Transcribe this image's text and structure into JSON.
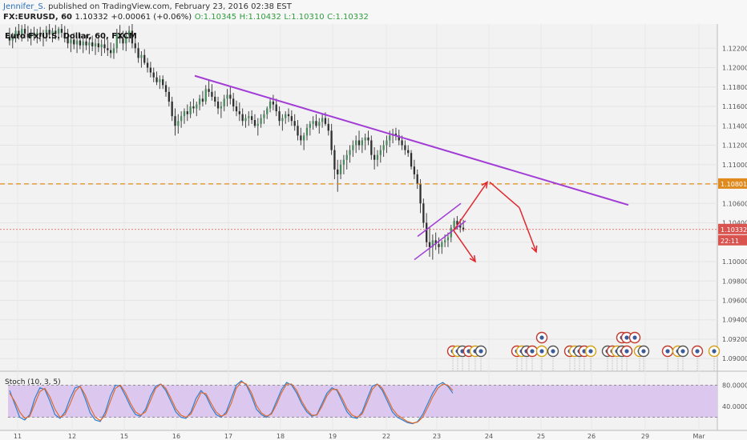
{
  "header": {
    "author": "Jennifer_S.",
    "published": "published on TradingView.com, February 23, 2016 02:38 EST",
    "symbol": "FX:EURUSD, 60",
    "last": "1.10332",
    "change": "+0.00061 (+0.06%)",
    "open": "O:1.10345",
    "high": "H:1.10432",
    "low": "L:1.10310",
    "close": "C:1.10332"
  },
  "chart_data": {
    "type": "candlestick",
    "title": "Euro Fx/U.S. Dollar, 60, FXCM",
    "x_tick_labels": [
      "11",
      "12",
      "15",
      "16",
      "17",
      "18",
      "19",
      "22",
      "23",
      "24",
      "25",
      "26",
      "29",
      "Mar"
    ],
    "y_tick_labels": [
      "1.12200",
      "1.12000",
      "1.11800",
      "1.11600",
      "1.11400",
      "1.11200",
      "1.11000",
      "1.10800",
      "1.10600",
      "1.10400",
      "1.10200",
      "1.10000",
      "1.09800",
      "1.09600",
      "1.09400",
      "1.09200",
      "1.09000"
    ],
    "ylim": [
      1.0887,
      1.1245
    ],
    "current_price_label": "1.10332",
    "countdown_label": "22:11",
    "resistance_label": "1.10801",
    "resistance_level": 1.10801,
    "current_price": 1.10332,
    "candles": [
      [
        1.1232,
        1.1241,
        1.1223,
        1.1228
      ],
      [
        1.1228,
        1.1236,
        1.122,
        1.1233
      ],
      [
        1.1233,
        1.1242,
        1.1226,
        1.1238
      ],
      [
        1.1238,
        1.1246,
        1.1229,
        1.1234
      ],
      [
        1.1234,
        1.1244,
        1.1227,
        1.124
      ],
      [
        1.124,
        1.1246,
        1.123,
        1.1235
      ],
      [
        1.1235,
        1.1243,
        1.1227,
        1.1231
      ],
      [
        1.1231,
        1.124,
        1.1223,
        1.1236
      ],
      [
        1.1236,
        1.1242,
        1.1228,
        1.1233
      ],
      [
        1.1233,
        1.124,
        1.1225,
        1.1236
      ],
      [
        1.1236,
        1.1242,
        1.1227,
        1.1232
      ],
      [
        1.1232,
        1.1239,
        1.1222,
        1.1235
      ],
      [
        1.1235,
        1.1243,
        1.1227,
        1.1239
      ],
      [
        1.1239,
        1.1245,
        1.123,
        1.1234
      ],
      [
        1.1234,
        1.1241,
        1.1226,
        1.1238
      ],
      [
        1.1238,
        1.1244,
        1.1229,
        1.1235
      ],
      [
        1.1235,
        1.1242,
        1.1228,
        1.124
      ],
      [
        1.124,
        1.1246,
        1.1231,
        1.1236
      ],
      [
        1.1236,
        1.1243,
        1.1226,
        1.1232
      ],
      [
        1.1232,
        1.124,
        1.122,
        1.1225
      ],
      [
        1.1225,
        1.1233,
        1.1216,
        1.1229
      ],
      [
        1.1229,
        1.1236,
        1.1219,
        1.1224
      ],
      [
        1.1224,
        1.1232,
        1.1215,
        1.1228
      ],
      [
        1.1228,
        1.1235,
        1.1219,
        1.1223
      ],
      [
        1.1223,
        1.1231,
        1.1215,
        1.1227
      ],
      [
        1.1227,
        1.1234,
        1.1218,
        1.1223
      ],
      [
        1.1223,
        1.1231,
        1.1214,
        1.1226
      ],
      [
        1.1226,
        1.1233,
        1.1217,
        1.1222
      ],
      [
        1.1222,
        1.123,
        1.1213,
        1.1225
      ],
      [
        1.1225,
        1.1232,
        1.1216,
        1.1221
      ],
      [
        1.1221,
        1.1229,
        1.1212,
        1.1224
      ],
      [
        1.1224,
        1.1231,
        1.1215,
        1.122
      ],
      [
        1.122,
        1.1229,
        1.1212,
        1.1218
      ],
      [
        1.1218,
        1.1226,
        1.121,
        1.1215
      ],
      [
        1.1215,
        1.1225,
        1.1209,
        1.122
      ],
      [
        1.122,
        1.124,
        1.1215,
        1.1235
      ],
      [
        1.1235,
        1.1244,
        1.1225,
        1.123
      ],
      [
        1.123,
        1.1238,
        1.1218,
        1.1225
      ],
      [
        1.1225,
        1.1238,
        1.1217,
        1.1233
      ],
      [
        1.1233,
        1.1243,
        1.1226,
        1.1238
      ],
      [
        1.1238,
        1.1245,
        1.122,
        1.1225
      ],
      [
        1.1225,
        1.1234,
        1.1215,
        1.122
      ],
      [
        1.122,
        1.1226,
        1.1205,
        1.121
      ],
      [
        1.121,
        1.1217,
        1.12,
        1.1213
      ],
      [
        1.1213,
        1.1219,
        1.1203,
        1.1205
      ],
      [
        1.1205,
        1.121,
        1.1195,
        1.12
      ],
      [
        1.12,
        1.1206,
        1.119,
        1.1195
      ],
      [
        1.1195,
        1.12,
        1.1185,
        1.119
      ],
      [
        1.119,
        1.1196,
        1.1182,
        1.1185
      ],
      [
        1.1185,
        1.1192,
        1.1178,
        1.1188
      ],
      [
        1.1188,
        1.1192,
        1.1178,
        1.1182
      ],
      [
        1.1182,
        1.1186,
        1.117,
        1.1175
      ],
      [
        1.1175,
        1.118,
        1.116,
        1.1165
      ],
      [
        1.1165,
        1.117,
        1.1145,
        1.115
      ],
      [
        1.115,
        1.1158,
        1.113,
        1.114
      ],
      [
        1.114,
        1.1152,
        1.1132,
        1.1145
      ],
      [
        1.1145,
        1.1155,
        1.1138,
        1.115
      ],
      [
        1.115,
        1.1158,
        1.1142,
        1.1155
      ],
      [
        1.1155,
        1.1162,
        1.1145,
        1.1152
      ],
      [
        1.1152,
        1.1165,
        1.1148,
        1.116
      ],
      [
        1.116,
        1.1168,
        1.1153,
        1.1158
      ],
      [
        1.1158,
        1.1165,
        1.115,
        1.1162
      ],
      [
        1.1162,
        1.1172,
        1.1156,
        1.1168
      ],
      [
        1.1168,
        1.1176,
        1.116,
        1.1165
      ],
      [
        1.1165,
        1.1182,
        1.1162,
        1.1178
      ],
      [
        1.1178,
        1.1188,
        1.117,
        1.1175
      ],
      [
        1.1175,
        1.1183,
        1.1166,
        1.117
      ],
      [
        1.117,
        1.1176,
        1.116,
        1.1165
      ],
      [
        1.1165,
        1.117,
        1.1152,
        1.1158
      ],
      [
        1.1158,
        1.1165,
        1.1148,
        1.116
      ],
      [
        1.116,
        1.1172,
        1.1155,
        1.1168
      ],
      [
        1.1168,
        1.1178,
        1.116,
        1.1172
      ],
      [
        1.1172,
        1.118,
        1.1162,
        1.1168
      ],
      [
        1.1168,
        1.1174,
        1.1155,
        1.116
      ],
      [
        1.116,
        1.1166,
        1.115,
        1.1155
      ],
      [
        1.1155,
        1.1164,
        1.1145,
        1.1152
      ],
      [
        1.1152,
        1.1158,
        1.114,
        1.1145
      ],
      [
        1.1145,
        1.1152,
        1.1138,
        1.1148
      ],
      [
        1.1148,
        1.1155,
        1.114,
        1.115
      ],
      [
        1.115,
        1.1156,
        1.1142,
        1.1146
      ],
      [
        1.1146,
        1.1152,
        1.1138,
        1.114
      ],
      [
        1.114,
        1.1148,
        1.113,
        1.1142
      ],
      [
        1.1142,
        1.1152,
        1.1138,
        1.1148
      ],
      [
        1.1148,
        1.1156,
        1.1142,
        1.1152
      ],
      [
        1.1152,
        1.116,
        1.1147,
        1.1158
      ],
      [
        1.1158,
        1.1168,
        1.1154,
        1.1165
      ],
      [
        1.1165,
        1.1172,
        1.1156,
        1.1162
      ],
      [
        1.1162,
        1.1168,
        1.115,
        1.1155
      ],
      [
        1.1155,
        1.116,
        1.114,
        1.1145
      ],
      [
        1.1145,
        1.1152,
        1.1135,
        1.1148
      ],
      [
        1.1148,
        1.1155,
        1.1142,
        1.1152
      ],
      [
        1.1152,
        1.1158,
        1.1144,
        1.115
      ],
      [
        1.115,
        1.1156,
        1.114,
        1.1145
      ],
      [
        1.1145,
        1.1152,
        1.1135,
        1.114
      ],
      [
        1.114,
        1.1146,
        1.1125,
        1.113
      ],
      [
        1.113,
        1.1138,
        1.112,
        1.1125
      ],
      [
        1.1125,
        1.1133,
        1.1115,
        1.113
      ],
      [
        1.113,
        1.1142,
        1.1125,
        1.1138
      ],
      [
        1.1138,
        1.1145,
        1.113,
        1.1142
      ],
      [
        1.1142,
        1.115,
        1.1136,
        1.1145
      ],
      [
        1.1145,
        1.1152,
        1.1138,
        1.114
      ],
      [
        1.114,
        1.1148,
        1.1132,
        1.1144
      ],
      [
        1.1144,
        1.1152,
        1.1138,
        1.1148
      ],
      [
        1.1148,
        1.1154,
        1.114,
        1.1142
      ],
      [
        1.1142,
        1.1148,
        1.113,
        1.1135
      ],
      [
        1.1135,
        1.1142,
        1.111,
        1.1115
      ],
      [
        1.1115,
        1.112,
        1.1085,
        1.1095
      ],
      [
        1.1095,
        1.1105,
        1.1072,
        1.109
      ],
      [
        1.109,
        1.1105,
        1.1085,
        1.11
      ],
      [
        1.11,
        1.111,
        1.109,
        1.1105
      ],
      [
        1.1105,
        1.1115,
        1.1095,
        1.111
      ],
      [
        1.111,
        1.112,
        1.1102,
        1.1115
      ],
      [
        1.1115,
        1.1125,
        1.1108,
        1.112
      ],
      [
        1.112,
        1.113,
        1.1112,
        1.1125
      ],
      [
        1.1125,
        1.1135,
        1.1115,
        1.112
      ],
      [
        1.112,
        1.1128,
        1.1112,
        1.1125
      ],
      [
        1.1125,
        1.1132,
        1.1115,
        1.1128
      ],
      [
        1.1128,
        1.1135,
        1.112,
        1.1125
      ],
      [
        1.1125,
        1.113,
        1.1105,
        1.111
      ],
      [
        1.111,
        1.1118,
        1.1095,
        1.1105
      ],
      [
        1.1105,
        1.1115,
        1.1098,
        1.111
      ],
      [
        1.111,
        1.112,
        1.1102,
        1.1115
      ],
      [
        1.1115,
        1.1125,
        1.1108,
        1.112
      ],
      [
        1.112,
        1.113,
        1.1112,
        1.1125
      ],
      [
        1.1125,
        1.1135,
        1.1118,
        1.113
      ],
      [
        1.113,
        1.1137,
        1.1122,
        1.1132
      ],
      [
        1.1132,
        1.1138,
        1.1125,
        1.113
      ],
      [
        1.113,
        1.1136,
        1.112,
        1.1125
      ],
      [
        1.1125,
        1.113,
        1.1115,
        1.112
      ],
      [
        1.112,
        1.1125,
        1.111,
        1.1115
      ],
      [
        1.1115,
        1.112,
        1.1108,
        1.1112
      ],
      [
        1.1112,
        1.1115,
        1.1095,
        1.1098
      ],
      [
        1.1098,
        1.1105,
        1.1085,
        1.109
      ],
      [
        1.109,
        1.1095,
        1.1075,
        1.108
      ],
      [
        1.108,
        1.1085,
        1.105,
        1.106
      ],
      [
        1.106,
        1.1065,
        1.1035,
        1.104
      ],
      [
        1.104,
        1.105,
        1.1015,
        1.102
      ],
      [
        1.102,
        1.1035,
        1.1005,
        1.1015
      ],
      [
        1.1015,
        1.1028,
        1.1002,
        1.1022
      ],
      [
        1.1022,
        1.103,
        1.1012,
        1.1018
      ],
      [
        1.1018,
        1.1025,
        1.1008,
        1.1015
      ],
      [
        1.1015,
        1.1022,
        1.1008,
        1.102
      ],
      [
        1.102,
        1.1028,
        1.1015,
        1.1022
      ],
      [
        1.1022,
        1.103,
        1.1015,
        1.1025
      ],
      [
        1.1025,
        1.1038,
        1.102,
        1.1035
      ],
      [
        1.1035,
        1.1045,
        1.103,
        1.1042
      ],
      [
        1.1042,
        1.1047,
        1.1033,
        1.1038
      ],
      [
        1.1038,
        1.1044,
        1.103,
        1.1035
      ],
      [
        1.1035,
        1.1043,
        1.1031,
        1.10332
      ]
    ],
    "annotations": {
      "downtrend_line": [
        [
          1.11916,
          1.10584
        ]
      ],
      "channel_upper": [
        [
          1.1026,
          1.106
        ]
      ],
      "channel_lower": [
        [
          1.1002,
          1.1042
        ]
      ],
      "projection_up_target": 1.1082,
      "projection_down_target": 1.1,
      "projection_down2_target": 1.101
    },
    "indicator": {
      "name": "Stoch (10, 3, 5)",
      "y_tick_labels": [
        "80.0000",
        "40.0000"
      ],
      "ylim": [
        0,
        100
      ],
      "upper_band": 80,
      "lower_band": 20,
      "k": [
        70,
        45,
        20,
        15,
        25,
        55,
        75,
        72,
        50,
        25,
        18,
        30,
        55,
        75,
        78,
        55,
        28,
        15,
        12,
        30,
        60,
        80,
        78,
        60,
        40,
        25,
        22,
        35,
        60,
        78,
        82,
        70,
        50,
        30,
        20,
        18,
        30,
        55,
        70,
        60,
        40,
        25,
        20,
        30,
        55,
        80,
        88,
        80,
        60,
        35,
        25,
        20,
        28,
        50,
        72,
        85,
        80,
        65,
        45,
        30,
        22,
        25,
        45,
        65,
        75,
        70,
        50,
        30,
        20,
        18,
        30,
        55,
        78,
        82,
        70,
        50,
        30,
        20,
        15,
        10,
        8,
        12,
        25,
        45,
        65,
        80,
        85,
        78,
        65
      ],
      "d": [
        65,
        50,
        30,
        18,
        22,
        45,
        68,
        74,
        58,
        35,
        20,
        25,
        45,
        68,
        78,
        62,
        38,
        20,
        14,
        24,
        50,
        74,
        80,
        66,
        46,
        30,
        24,
        30,
        52,
        74,
        82,
        74,
        56,
        36,
        24,
        20,
        26,
        46,
        66,
        64,
        46,
        30,
        22,
        26,
        46,
        74,
        86,
        82,
        66,
        42,
        28,
        22,
        26,
        44,
        66,
        82,
        82,
        70,
        50,
        34,
        24,
        24,
        40,
        60,
        72,
        72,
        56,
        36,
        24,
        20,
        26,
        48,
        72,
        82,
        74,
        56,
        36,
        24,
        18,
        12,
        9,
        11,
        20,
        38,
        58,
        74,
        82,
        80,
        70
      ]
    }
  }
}
